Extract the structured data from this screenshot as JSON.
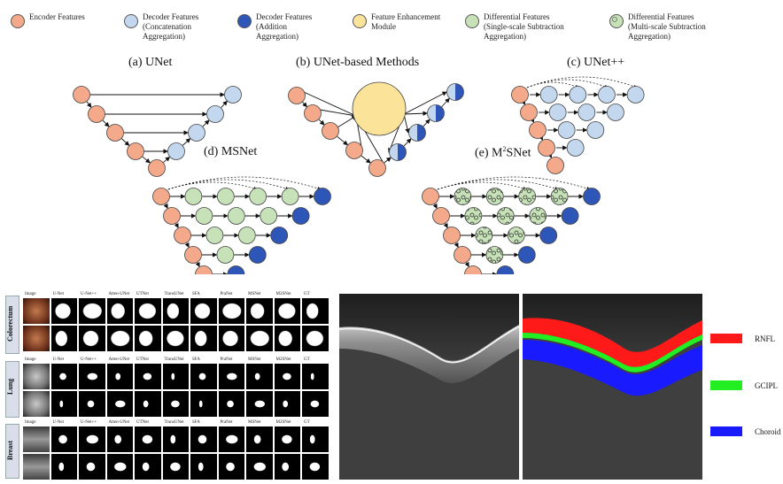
{
  "legend": [
    {
      "label": "Encoder Features",
      "color": "#f4a98a",
      "pattern": "solid"
    },
    {
      "label": "Decoder Features\n(Concatenation\nAggregation)",
      "color": "#c3d8ef",
      "pattern": "solid"
    },
    {
      "label": "Decoder Features\n(Addition\nAggregation)",
      "color": "#2e55b8",
      "pattern": "solid"
    },
    {
      "label": "Feature Enhancement\nModule",
      "color": "#fbe39a",
      "pattern": "solid"
    },
    {
      "label": "Differential Features\n(Single-scale Subtraction\nAggregation)",
      "color": "#c7e2b8",
      "pattern": "solid"
    },
    {
      "label": "Differential Features\n(Multi-scale Subtraction\nAggregation)",
      "color": "#c7e2b8",
      "pattern": "dots"
    }
  ],
  "panels": {
    "a": "(a) UNet",
    "b": "(b) UNet-based Methods",
    "c": "(c) UNet++",
    "d": "(d) MSNet",
    "e_prefix": "(e) M",
    "e_sup": "2",
    "e_suffix": "SNet"
  },
  "seg_grid": {
    "columns": [
      "Image",
      "U-Net",
      "U-Net++",
      "Atten-UNet",
      "UTNet",
      "TransUNet",
      "SFA",
      "PraNet",
      "MSNet",
      "M2SNet",
      "GT"
    ],
    "rows": [
      "Colorectum",
      "Lung",
      "Breast"
    ]
  },
  "oct": {
    "legend": [
      {
        "label": "RNFL",
        "color": "#ff1a1a"
      },
      {
        "label": "GCIPL",
        "color": "#22ee22"
      },
      {
        "label": "Choroid",
        "color": "#1a1aff"
      }
    ]
  }
}
